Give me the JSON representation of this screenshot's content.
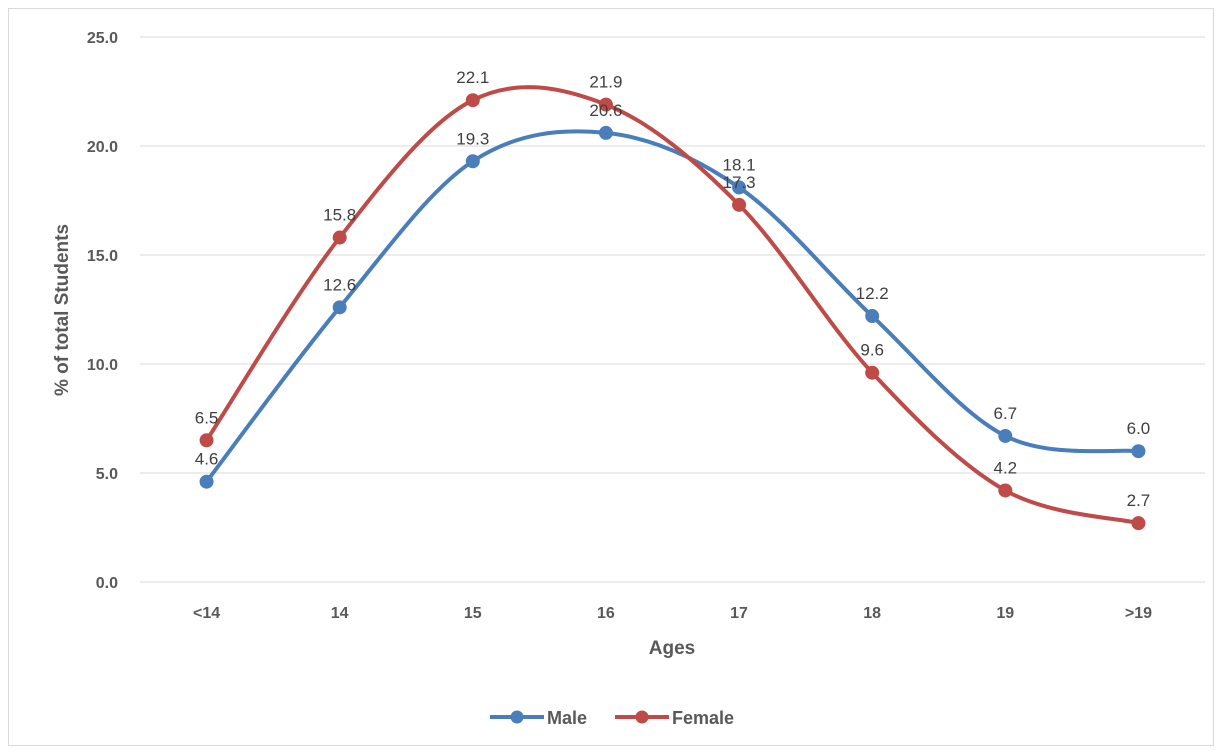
{
  "chart_data": {
    "type": "line",
    "categories": [
      "<14",
      "14",
      "15",
      "16",
      "17",
      "18",
      "19",
      ">19"
    ],
    "series": [
      {
        "name": "Male",
        "values": [
          4.6,
          12.6,
          19.3,
          20.6,
          18.1,
          12.2,
          6.7,
          6.0
        ],
        "color": "#4a7ebb"
      },
      {
        "name": "Female",
        "values": [
          6.5,
          15.8,
          22.1,
          21.9,
          17.3,
          9.6,
          4.2,
          2.7
        ],
        "color": "#be4b48"
      }
    ],
    "data_labels": {
      "Male": [
        "4.6",
        "12.6",
        "19.3",
        "20.6",
        "18.1",
        "12.2",
        "6.7",
        "6.0"
      ],
      "Female": [
        "6.5",
        "15.8",
        "22.1",
        "21.9",
        "17.3",
        "9.6",
        "4.2",
        "2.7"
      ]
    },
    "xlabel": "Ages",
    "ylabel": "% of total Students",
    "ylim": [
      0,
      25
    ],
    "yticks": [
      "0.0",
      "5.0",
      "10.0",
      "15.0",
      "20.0",
      "25.0"
    ],
    "grid": true,
    "smooth": true,
    "legend": "bottom-center"
  }
}
